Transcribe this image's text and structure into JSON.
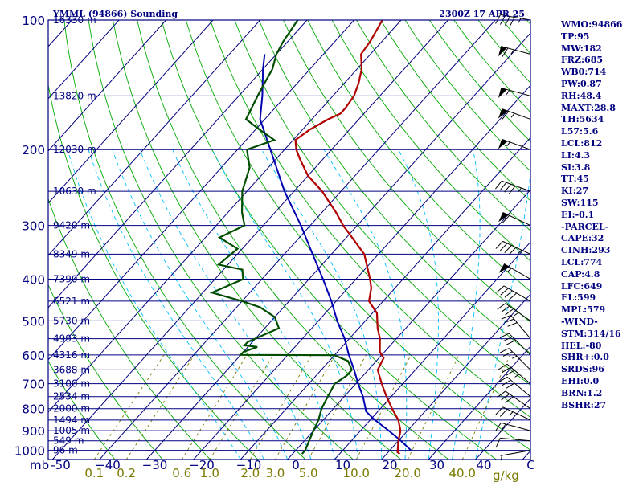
{
  "header": {
    "station": "YMML (94866) Sounding",
    "time": "2300Z 17 APR 25"
  },
  "stats": [
    "WMO:94866",
    "TP:95",
    "MW:182",
    "FRZ:685",
    "WB0:714",
    "PW:0.87",
    "RH:48.4",
    "MAXT:28.8",
    "TH:5634",
    "L57:5.6",
    "LCL:812",
    "LI:4.3",
    "SI:3.8",
    "TT:45",
    "KI:27",
    "SW:115",
    "EI:-0.1",
    "-PARCEL-",
    "CAPE:32",
    "CINH:293",
    "LCL:774",
    "CAP:4.8",
    "LFC:649",
    "EL:599",
    "MPL:579",
    "-WIND-",
    "STM:314/16",
    "HEL:-80",
    "SHR+:0.0",
    "SRDS:96",
    "EHI:0.0",
    "BRN:1.2",
    "BSHR:27"
  ],
  "colors": {
    "frame": "#000080",
    "isotherm": "#000080",
    "dry_adiabat": "#00aa00",
    "moist_adiabat": "#00bfff",
    "mixing_ratio": "#7a7a00",
    "temperature": "#b00000",
    "dewpoint": "#004d00",
    "parcel": "#0000b0",
    "wind_barb": "#000000"
  },
  "chart_data": {
    "type": "skew-t",
    "pressure_axis": {
      "scale": "log",
      "ticks": [
        100,
        200,
        300,
        400,
        500,
        600,
        700,
        800,
        900,
        1000
      ],
      "range_hPa": [
        100,
        1050
      ],
      "unit": "mb"
    },
    "temperature_axis": {
      "ticks": [
        -50,
        -40,
        -30,
        -20,
        -10,
        0,
        10,
        20,
        30,
        40,
        50
      ],
      "tick_labels": [
        "-50",
        "−40",
        "−30",
        "−20",
        "−10",
        "0",
        "10",
        "20",
        "30",
        "40",
        "C"
      ],
      "unit_label": "C"
    },
    "mixing_ratio_axis": {
      "values": [
        0.1,
        0.2,
        0.6,
        1.0,
        2.0,
        3.0,
        5.0,
        10.0,
        20.0,
        40.0
      ],
      "labels": [
        "0.1",
        "0.2",
        "0.6",
        "1.0",
        "2.0",
        "3.0",
        "5.0",
        "10.0",
        "20.0",
        "40.0"
      ],
      "unit": "g/kg"
    },
    "height_levels": [
      {
        "p": 100,
        "label": "16330 m"
      },
      {
        "p": 150,
        "label": "13820 m"
      },
      {
        "p": 200,
        "label": "12030 m"
      },
      {
        "p": 250,
        "label": "10630 m"
      },
      {
        "p": 300,
        "label": "9420 m"
      },
      {
        "p": 350,
        "label": "8349 m"
      },
      {
        "p": 400,
        "label": "7390 m"
      },
      {
        "p": 450,
        "label": "6521 m"
      },
      {
        "p": 500,
        "label": "5730 m"
      },
      {
        "p": 550,
        "label": "4993 m"
      },
      {
        "p": 600,
        "label": "4316 m"
      },
      {
        "p": 650,
        "label": "3688 m"
      },
      {
        "p": 700,
        "label": "3100 m"
      },
      {
        "p": 750,
        "label": "2534 m"
      },
      {
        "p": 800,
        "label": "2000 m"
      },
      {
        "p": 850,
        "label": "1494 m"
      },
      {
        "p": 900,
        "label": "1005 m"
      },
      {
        "p": 950,
        "label": "549 m"
      },
      {
        "p": 1000,
        "label": "96 m"
      }
    ],
    "temperature": [
      [
        1019,
        22.8
      ],
      [
        1010,
        22
      ],
      [
        950,
        20
      ],
      [
        900,
        18.5
      ],
      [
        850,
        16
      ],
      [
        800,
        12.5
      ],
      [
        750,
        9
      ],
      [
        700,
        5.5
      ],
      [
        650,
        2
      ],
      [
        610,
        1
      ],
      [
        600,
        0
      ],
      [
        590,
        -1
      ],
      [
        550,
        -3.5
      ],
      [
        520,
        -6
      ],
      [
        480,
        -9
      ],
      [
        450,
        -13
      ],
      [
        420,
        -15
      ],
      [
        400,
        -17
      ],
      [
        350,
        -23
      ],
      [
        300,
        -33
      ],
      [
        280,
        -37
      ],
      [
        250,
        -44
      ],
      [
        230,
        -50
      ],
      [
        210,
        -55
      ],
      [
        200,
        -57.5
      ],
      [
        190,
        -59.5
      ],
      [
        180,
        -58.5
      ],
      [
        170,
        -56.5
      ],
      [
        165,
        -55
      ],
      [
        160,
        -55
      ],
      [
        150,
        -55.5
      ],
      [
        140,
        -57
      ],
      [
        130,
        -59
      ],
      [
        120,
        -62
      ],
      [
        112,
        -62.5
      ],
      [
        100,
        -64
      ]
    ],
    "dewpoint": [
      [
        1019,
        2
      ],
      [
        1000,
        2
      ],
      [
        950,
        1
      ],
      [
        900,
        0
      ],
      [
        850,
        -1
      ],
      [
        800,
        -2.5
      ],
      [
        750,
        -3.5
      ],
      [
        700,
        -4.5
      ],
      [
        670,
        -3.5
      ],
      [
        650,
        -3.5
      ],
      [
        620,
        -6
      ],
      [
        601,
        -10
      ],
      [
        600,
        -30
      ],
      [
        590,
        -30
      ],
      [
        575,
        -28
      ],
      [
        570,
        -31
      ],
      [
        560,
        -31
      ],
      [
        520,
        -27
      ],
      [
        490,
        -30
      ],
      [
        465,
        -35
      ],
      [
        450,
        -40
      ],
      [
        430,
        -48
      ],
      [
        400,
        -44
      ],
      [
        380,
        -46
      ],
      [
        370,
        -52
      ],
      [
        340,
        -51
      ],
      [
        320,
        -57
      ],
      [
        300,
        -54
      ],
      [
        280,
        -57
      ],
      [
        250,
        -61
      ],
      [
        220,
        -64
      ],
      [
        200,
        -68
      ],
      [
        190,
        -64
      ],
      [
        180,
        -69
      ],
      [
        170,
        -74
      ],
      [
        150,
        -76
      ],
      [
        140,
        -77
      ],
      [
        130,
        -78
      ],
      [
        120,
        -80
      ],
      [
        112,
        -81
      ],
      [
        100,
        -82
      ]
    ],
    "parcel_path": [
      [
        1000,
        24.5
      ],
      [
        950,
        20.5
      ],
      [
        900,
        16
      ],
      [
        850,
        11
      ],
      [
        812,
        7.5
      ],
      [
        750,
        4
      ],
      [
        700,
        0.5
      ],
      [
        650,
        -3
      ],
      [
        600,
        -7
      ],
      [
        550,
        -11
      ],
      [
        500,
        -16
      ],
      [
        450,
        -21
      ],
      [
        400,
        -27
      ],
      [
        350,
        -34
      ],
      [
        300,
        -42
      ],
      [
        250,
        -52
      ],
      [
        200,
        -63
      ],
      [
        170,
        -71
      ],
      [
        150,
        -75
      ],
      [
        130,
        -80
      ],
      [
        120,
        -82.5
      ]
    ],
    "wind_barbs": [
      {
        "p": 1000,
        "dir": 260,
        "spd": 5
      },
      {
        "p": 950,
        "dir": 275,
        "spd": 10
      },
      {
        "p": 900,
        "dir": 285,
        "spd": 20
      },
      {
        "p": 850,
        "dir": 295,
        "spd": 25
      },
      {
        "p": 800,
        "dir": 305,
        "spd": 30
      },
      {
        "p": 750,
        "dir": 310,
        "spd": 30
      },
      {
        "p": 700,
        "dir": 310,
        "spd": 35
      },
      {
        "p": 650,
        "dir": 315,
        "spd": 25
      },
      {
        "p": 600,
        "dir": 315,
        "spd": 30
      },
      {
        "p": 550,
        "dir": 320,
        "spd": 30
      },
      {
        "p": 500,
        "dir": 305,
        "spd": 35
      },
      {
        "p": 450,
        "dir": 300,
        "spd": 40
      },
      {
        "p": 400,
        "dir": 300,
        "spd": 55
      },
      {
        "p": 350,
        "dir": 295,
        "spd": 45
      },
      {
        "p": 300,
        "dir": 295,
        "spd": 60
      },
      {
        "p": 250,
        "dir": 290,
        "spd": 45
      },
      {
        "p": 200,
        "dir": 290,
        "spd": 55
      },
      {
        "p": 170,
        "dir": 290,
        "spd": 65
      },
      {
        "p": 150,
        "dir": 285,
        "spd": 55
      },
      {
        "p": 120,
        "dir": 285,
        "spd": 65
      },
      {
        "p": 100,
        "dir": 280,
        "spd": 45
      }
    ]
  }
}
